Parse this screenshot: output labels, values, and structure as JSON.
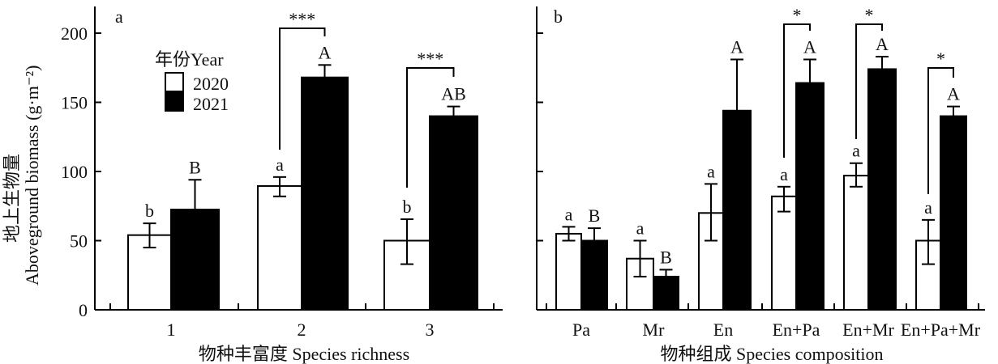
{
  "chart_data": [
    {
      "type": "bar",
      "panel_label": "a",
      "xlabel": "物种丰富度 Species richness",
      "ylabel_cn": "地上生物量",
      "ylabel": "Aboveground biomass (g·m⁻²)",
      "ylim": [
        0,
        220
      ],
      "yticks": [
        0,
        50,
        100,
        150,
        200
      ],
      "categories": [
        "1",
        "2",
        "3"
      ],
      "legend": {
        "title": "年份Year",
        "placement": "top-left"
      },
      "series": [
        {
          "name": "2020",
          "color": "#ffffff",
          "values": [
            54,
            89.5,
            50
          ],
          "err_upper": [
            62.5,
            96,
            65.5
          ],
          "err_lower": [
            45,
            82,
            33
          ],
          "letters": [
            "b",
            "a",
            "b"
          ]
        },
        {
          "name": "2021",
          "color": "#000000",
          "values": [
            72.5,
            168,
            140
          ],
          "err_upper": [
            94,
            177,
            147
          ],
          "err_lower": [
            null,
            null,
            null
          ],
          "letters": [
            "B",
            "A",
            "AB"
          ]
        }
      ],
      "significance": [
        "",
        "***",
        "***"
      ]
    },
    {
      "type": "bar",
      "panel_label": "b",
      "xlabel": "物种组成 Species composition",
      "ylim": [
        0,
        220
      ],
      "yticks": [
        0,
        50,
        100,
        150,
        200
      ],
      "categories": [
        "Pa",
        "Mr",
        "En",
        "En+Pa",
        "En+Mr",
        "En+Pa+Mr"
      ],
      "series": [
        {
          "name": "2020",
          "color": "#ffffff",
          "values": [
            55,
            37,
            70,
            82,
            97,
            50
          ],
          "err_upper": [
            60,
            50,
            91,
            89,
            106,
            65
          ],
          "err_lower": [
            50,
            24,
            50,
            71,
            89,
            33
          ],
          "letters": [
            "a",
            "a",
            "a",
            "a",
            "a",
            "a"
          ]
        },
        {
          "name": "2021",
          "color": "#000000",
          "values": [
            50,
            24,
            144,
            164,
            174,
            140
          ],
          "err_upper": [
            59,
            29,
            181,
            181,
            183,
            147
          ],
          "err_lower": [
            null,
            null,
            null,
            null,
            null,
            null
          ],
          "letters": [
            "B",
            "B",
            "A",
            "A",
            "A",
            "A"
          ]
        }
      ],
      "significance": [
        "",
        "",
        "",
        "*",
        "*",
        "*"
      ]
    }
  ]
}
